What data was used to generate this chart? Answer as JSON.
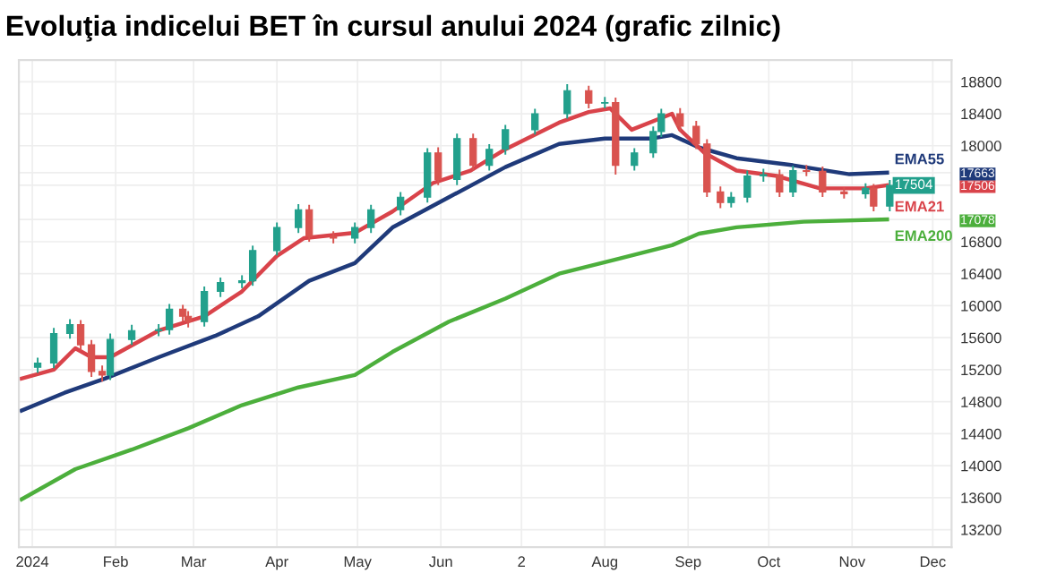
{
  "chart_data": {
    "type": "candlestick",
    "title": "Evoluţia indicelui BET în cursul anului 2024 (grafic zilnic)",
    "x": [
      "2024-01-03",
      "2024-01-09",
      "2024-01-15",
      "2024-01-19",
      "2024-01-23",
      "2024-01-27",
      "2024-01-30",
      "2024-02-07",
      "2024-02-17",
      "2024-02-21",
      "2024-02-26",
      "2024-02-28",
      "2024-03-05",
      "2024-03-11",
      "2024-03-19",
      "2024-03-23",
      "2024-04-01",
      "2024-04-09",
      "2024-04-13",
      "2024-04-22",
      "2024-04-30",
      "2024-05-06",
      "2024-05-17",
      "2024-05-27",
      "2024-05-31",
      "2024-06-07",
      "2024-06-13",
      "2024-06-19",
      "2024-06-25",
      "2024-07-06",
      "2024-07-18",
      "2024-07-26",
      "2024-08-01",
      "2024-08-05",
      "2024-08-12",
      "2024-08-19",
      "2024-08-22",
      "2024-08-29",
      "2024-09-04",
      "2024-09-08",
      "2024-09-13",
      "2024-09-17",
      "2024-09-23",
      "2024-09-29",
      "2024-10-05",
      "2024-10-10",
      "2024-10-15",
      "2024-10-21",
      "2024-10-29",
      "2024-11-06",
      "2024-11-09",
      "2024-11-15"
    ],
    "ohlc": [
      [
        15230,
        15340,
        15170,
        15283
      ],
      [
        15283,
        15710,
        15230,
        15652
      ],
      [
        15652,
        15820,
        15600,
        15763
      ],
      [
        15763,
        15810,
        15450,
        15511
      ],
      [
        15511,
        15560,
        15120,
        15178
      ],
      [
        15178,
        15240,
        15060,
        15133
      ],
      [
        15133,
        15640,
        15080,
        15578
      ],
      [
        15578,
        15750,
        15520,
        15689
      ],
      [
        15689,
        15760,
        15630,
        15700
      ],
      [
        15700,
        16010,
        15650,
        15956
      ],
      [
        15956,
        16000,
        15810,
        15867
      ],
      [
        15867,
        15920,
        15740,
        15800
      ],
      [
        15800,
        16230,
        15750,
        16178
      ],
      [
        16178,
        16340,
        16120,
        16289
      ],
      [
        16289,
        16370,
        16230,
        16311
      ],
      [
        16311,
        16740,
        16260,
        16689
      ],
      [
        16689,
        17030,
        16640,
        16978
      ],
      [
        16978,
        17260,
        16920,
        17200
      ],
      [
        17200,
        17250,
        16810,
        16867
      ],
      [
        16867,
        16920,
        16790,
        16844
      ],
      [
        16844,
        17030,
        16790,
        16978
      ],
      [
        16978,
        17250,
        16920,
        17200
      ],
      [
        17200,
        17410,
        17140,
        17356
      ],
      [
        17356,
        17960,
        17300,
        17911
      ],
      [
        17911,
        17970,
        17520,
        17578
      ],
      [
        17578,
        18140,
        17520,
        18089
      ],
      [
        18089,
        18140,
        17700,
        17756
      ],
      [
        17756,
        18010,
        17700,
        17956
      ],
      [
        17956,
        18250,
        17900,
        18200
      ],
      [
        18200,
        18450,
        18150,
        18400
      ],
      [
        18400,
        18760,
        18350,
        18689
      ],
      [
        18689,
        18740,
        18480,
        18533
      ],
      [
        18533,
        18600,
        18480,
        18540
      ],
      [
        18540,
        18590,
        17650,
        17756
      ],
      [
        17756,
        17960,
        17700,
        17911
      ],
      [
        17911,
        18230,
        17860,
        18178
      ],
      [
        18178,
        18450,
        18120,
        18400
      ],
      [
        18400,
        18460,
        18190,
        18244
      ],
      [
        18244,
        18300,
        17970,
        18022
      ],
      [
        18022,
        18070,
        17370,
        17422
      ],
      [
        17422,
        17480,
        17230,
        17289
      ],
      [
        17289,
        17410,
        17240,
        17356
      ],
      [
        17356,
        17680,
        17300,
        17622
      ],
      [
        17622,
        17700,
        17560,
        17640
      ],
      [
        17640,
        17690,
        17370,
        17422
      ],
      [
        17422,
        17740,
        17370,
        17689
      ],
      [
        17689,
        17750,
        17630,
        17680
      ],
      [
        17680,
        17730,
        17370,
        17422
      ],
      [
        17422,
        17470,
        17350,
        17400
      ],
      [
        17400,
        17520,
        17350,
        17467
      ],
      [
        17467,
        17510,
        17190,
        17244
      ],
      [
        17244,
        17560,
        17190,
        17504
      ]
    ],
    "colors": [
      "#22a08c",
      "#22a08c",
      "#22a08c",
      "#d9534f",
      "#d9534f",
      "#d9534f",
      "#22a08c",
      "#22a08c",
      "#22a08c",
      "#22a08c",
      "#d9534f",
      "#d9534f",
      "#22a08c",
      "#22a08c",
      "#22a08c",
      "#22a08c",
      "#22a08c",
      "#22a08c",
      "#d9534f",
      "#d9534f",
      "#22a08c",
      "#22a08c",
      "#22a08c",
      "#22a08c",
      "#d9534f",
      "#22a08c",
      "#d9534f",
      "#22a08c",
      "#22a08c",
      "#22a08c",
      "#22a08c",
      "#d9534f",
      "#22a08c",
      "#d9534f",
      "#22a08c",
      "#22a08c",
      "#22a08c",
      "#d9534f",
      "#d9534f",
      "#d9534f",
      "#d9534f",
      "#22a08c",
      "#22a08c",
      "#22a08c",
      "#d9534f",
      "#22a08c",
      "#d9534f",
      "#d9534f",
      "#d9534f",
      "#22a08c",
      "#d9534f",
      "#22a08c"
    ],
    "series": [
      {
        "name": "EMA55",
        "type": "line",
        "color": "#1f3a7a",
        "x": [
          "2023-12-28",
          "2024-01-13",
          "2024-01-28",
          "2024-02-17",
          "2024-03-09",
          "2024-03-25",
          "2024-04-13",
          "2024-04-30",
          "2024-05-14",
          "2024-06-04",
          "2024-06-25",
          "2024-07-15",
          "2024-08-01",
          "2024-08-18",
          "2024-08-26",
          "2024-09-05",
          "2024-09-19",
          "2024-10-10",
          "2024-10-31",
          "2024-11-14"
        ],
        "values": [
          14689,
          14911,
          15089,
          15356,
          15622,
          15867,
          16311,
          16533,
          16978,
          17356,
          17733,
          18022,
          18089,
          18089,
          18133,
          17978,
          17844,
          17756,
          17644,
          17663
        ]
      },
      {
        "name": "EMA21",
        "type": "line",
        "color": "#d9434a",
        "x": [
          "2023-12-28",
          "2024-01-09",
          "2024-01-17",
          "2024-01-23",
          "2024-01-30",
          "2024-02-17",
          "2024-03-05",
          "2024-03-19",
          "2024-04-01",
          "2024-04-11",
          "2024-04-30",
          "2024-05-14",
          "2024-05-29",
          "2024-06-12",
          "2024-06-25",
          "2024-07-15",
          "2024-07-26",
          "2024-08-03",
          "2024-08-11",
          "2024-08-26",
          "2024-08-29",
          "2024-09-07",
          "2024-09-19",
          "2024-10-04",
          "2024-10-20",
          "2024-11-06",
          "2024-11-14"
        ],
        "values": [
          15089,
          15200,
          15467,
          15356,
          15356,
          15689,
          15867,
          16178,
          16622,
          16844,
          16911,
          17178,
          17533,
          17689,
          17956,
          18289,
          18422,
          18467,
          18200,
          18400,
          18200,
          17911,
          17689,
          17622,
          17467,
          17467,
          17506
        ]
      },
      {
        "name": "EMA200",
        "type": "line",
        "color": "#4caf3c",
        "x": [
          "2023-12-28",
          "2024-01-17",
          "2024-02-07",
          "2024-02-28",
          "2024-03-19",
          "2024-04-09",
          "2024-04-30",
          "2024-05-14",
          "2024-06-04",
          "2024-06-25",
          "2024-07-15",
          "2024-08-05",
          "2024-08-26",
          "2024-09-05",
          "2024-09-19",
          "2024-10-14",
          "2024-11-14"
        ],
        "values": [
          13578,
          13956,
          14200,
          14467,
          14756,
          14978,
          15133,
          15422,
          15800,
          16089,
          16400,
          16578,
          16756,
          16900,
          16980,
          17050,
          17078
        ]
      }
    ],
    "annotations": [
      {
        "text": "17504",
        "x": "2024-11-15",
        "y": 17504
      }
    ],
    "xlim": [
      "2023-12-27",
      "2024-12-08"
    ],
    "xticks": [
      {
        "value": "2024-01-01",
        "label": "2024"
      },
      {
        "value": "2024-02-01",
        "label": "Feb"
      },
      {
        "value": "2024-03-01",
        "label": "Mar"
      },
      {
        "value": "2024-04-01",
        "label": "Apr"
      },
      {
        "value": "2024-05-01",
        "label": "May"
      },
      {
        "value": "2024-06-01",
        "label": "Jun"
      },
      {
        "value": "2024-07-01",
        "label": "2"
      },
      {
        "value": "2024-08-01",
        "label": "Aug"
      },
      {
        "value": "2024-09-01",
        "label": "Sep"
      },
      {
        "value": "2024-10-01",
        "label": "Oct"
      },
      {
        "value": "2024-11-01",
        "label": "Nov"
      },
      {
        "value": "2024-12-01",
        "label": "Dec"
      }
    ],
    "ylim": [
      12980,
      19070
    ],
    "yticks": [
      13200,
      13600,
      14000,
      14400,
      14800,
      15200,
      15600,
      16000,
      16400,
      16800,
      17078,
      17506,
      17663,
      18000,
      18400,
      18800
    ],
    "grid": true,
    "legend": "right"
  }
}
